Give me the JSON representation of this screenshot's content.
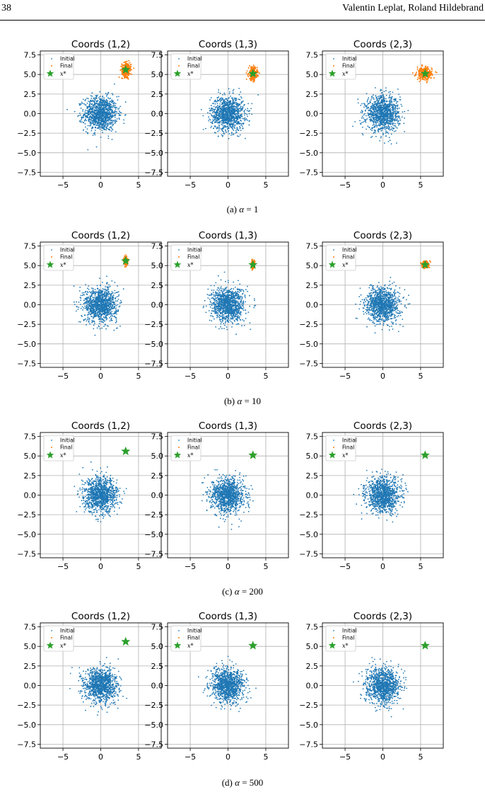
{
  "page": {
    "number": "38",
    "authors": "Valentin Leplat, Roland Hildebrand"
  },
  "legend": {
    "initial": "Initial",
    "final": "Final",
    "target": "x*"
  },
  "colors": {
    "initial": "#1f77b4",
    "final": "#ff7f0e",
    "target": "#2ca02c",
    "grid": "#b0b0b0"
  },
  "chart_data": [
    {
      "caption_prefix": "(a)",
      "alpha_text": "α",
      "alpha_value": "= 1",
      "alpha": 1,
      "panels": [
        {
          "title": "Coords (1,2)",
          "type": "scatter",
          "initial_center": [
            0,
            0
          ],
          "initial_spread": [
            1.1,
            1.1
          ],
          "final_center": [
            3.4,
            5.6
          ],
          "final_spread": [
            0.3,
            0.45
          ],
          "target": [
            3.3,
            5.6
          ],
          "show_final": true
        },
        {
          "title": "Coords (1,3)",
          "type": "scatter",
          "initial_center": [
            0,
            0
          ],
          "initial_spread": [
            1.1,
            1.1
          ],
          "final_center": [
            3.3,
            5.1
          ],
          "final_spread": [
            0.28,
            0.42
          ],
          "target": [
            3.3,
            5.1
          ],
          "show_final": true
        },
        {
          "title": "Coords (2,3)",
          "type": "scatter",
          "initial_center": [
            0,
            0
          ],
          "initial_spread": [
            1.1,
            1.1
          ],
          "final_center": [
            5.5,
            5.1
          ],
          "final_spread": [
            0.5,
            0.4
          ],
          "target": [
            5.6,
            5.1
          ],
          "show_final": true
        }
      ]
    },
    {
      "caption_prefix": "(b)",
      "alpha_text": "α",
      "alpha_value": "= 10",
      "alpha": 10,
      "panels": [
        {
          "title": "Coords (1,2)",
          "type": "scatter",
          "initial_center": [
            0,
            0
          ],
          "initial_spread": [
            1.1,
            1.1
          ],
          "final_center": [
            3.3,
            5.6
          ],
          "final_spread": [
            0.12,
            0.25
          ],
          "target": [
            3.3,
            5.6
          ],
          "show_final": true
        },
        {
          "title": "Coords (1,3)",
          "type": "scatter",
          "initial_center": [
            0,
            0
          ],
          "initial_spread": [
            1.1,
            1.1
          ],
          "final_center": [
            3.3,
            5.1
          ],
          "final_spread": [
            0.1,
            0.22
          ],
          "target": [
            3.3,
            5.1
          ],
          "show_final": true
        },
        {
          "title": "Coords (2,3)",
          "type": "scatter",
          "initial_center": [
            0,
            0
          ],
          "initial_spread": [
            1.1,
            1.1
          ],
          "final_center": [
            5.6,
            5.1
          ],
          "final_spread": [
            0.22,
            0.2
          ],
          "target": [
            5.6,
            5.1
          ],
          "show_final": true
        }
      ]
    },
    {
      "caption_prefix": "(c)",
      "alpha_text": "α",
      "alpha_value": "= 200",
      "alpha": 200,
      "panels": [
        {
          "title": "Coords (1,2)",
          "type": "scatter",
          "initial_center": [
            0,
            0
          ],
          "initial_spread": [
            1.1,
            1.1
          ],
          "target": [
            3.3,
            5.6
          ],
          "show_final": false
        },
        {
          "title": "Coords (1,3)",
          "type": "scatter",
          "initial_center": [
            0,
            0
          ],
          "initial_spread": [
            1.1,
            1.1
          ],
          "target": [
            3.3,
            5.1
          ],
          "show_final": false
        },
        {
          "title": "Coords (2,3)",
          "type": "scatter",
          "initial_center": [
            0,
            0
          ],
          "initial_spread": [
            1.1,
            1.1
          ],
          "target": [
            5.6,
            5.1
          ],
          "show_final": false
        }
      ]
    },
    {
      "caption_prefix": "(d)",
      "alpha_text": "α",
      "alpha_value": "= 500",
      "alpha": 500,
      "panels": [
        {
          "title": "Coords (1,2)",
          "type": "scatter",
          "initial_center": [
            0,
            0
          ],
          "initial_spread": [
            1.1,
            1.1
          ],
          "target": [
            3.3,
            5.6
          ],
          "show_final": false
        },
        {
          "title": "Coords (1,3)",
          "type": "scatter",
          "initial_center": [
            0,
            0
          ],
          "initial_spread": [
            1.1,
            1.1
          ],
          "target": [
            3.3,
            5.1
          ],
          "show_final": false
        },
        {
          "title": "Coords (2,3)",
          "type": "scatter",
          "initial_center": [
            0,
            0
          ],
          "initial_spread": [
            1.1,
            1.1
          ],
          "target": [
            5.6,
            5.1
          ],
          "show_final": false
        }
      ]
    }
  ],
  "axes": {
    "xlim": [
      -8,
      8
    ],
    "ylim": [
      -8,
      8
    ],
    "xticks": [
      -5,
      0,
      5
    ],
    "xtick_labels": [
      "−5",
      "0",
      "5"
    ],
    "yticks": [
      7.5,
      5.0,
      2.5,
      0.0,
      -2.5,
      -5.0,
      -7.5
    ],
    "ytick_labels": [
      "7.5",
      "5.0",
      "2.5",
      "0.0",
      "−2.5",
      "−5.0",
      "−7.5"
    ],
    "grid": true,
    "legend_position": "upper-left"
  }
}
